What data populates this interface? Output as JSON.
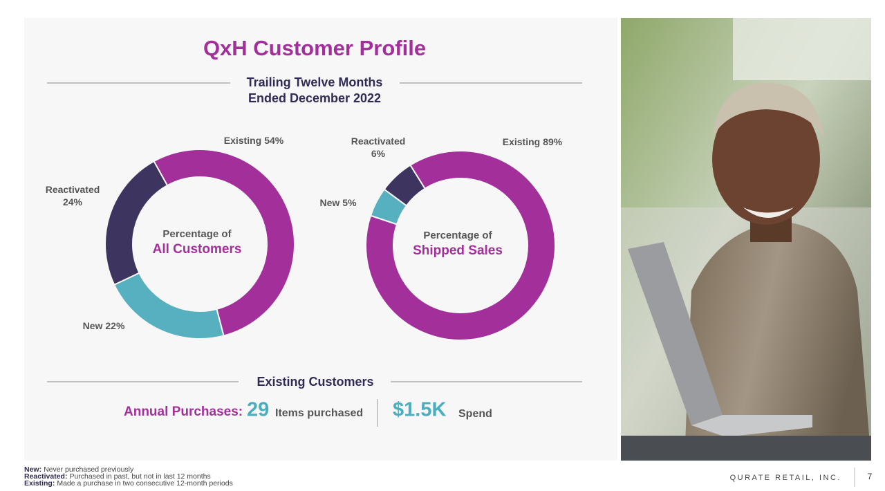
{
  "title": "QxH Customer Profile",
  "subtitle": [
    "Trailing Twelve Months",
    "Ended December 2022"
  ],
  "chart_data": [
    {
      "type": "pie",
      "donut": true,
      "center_label": [
        "Percentage of",
        "All Customers"
      ],
      "categories": [
        "Existing",
        "New",
        "Reactivated"
      ],
      "values": [
        54,
        22,
        24
      ],
      "value_labels": [
        "54%",
        "22%",
        "24%"
      ],
      "colors": [
        "#a3309a",
        "#56b0bf",
        "#3d3560"
      ]
    },
    {
      "type": "pie",
      "donut": true,
      "center_label": [
        "Percentage of",
        "Shipped Sales"
      ],
      "categories": [
        "Existing",
        "New",
        "Reactivated"
      ],
      "values": [
        89,
        5,
        6
      ],
      "value_labels": [
        "89%",
        "5%",
        "6%"
      ],
      "colors": [
        "#a3309a",
        "#56b0bf",
        "#3d3560"
      ]
    }
  ],
  "existing_customers": {
    "heading": "Existing Customers",
    "label": "Annual Purchases:",
    "items_value": "29",
    "items_text": "Items purchased",
    "spend_value": "$1.5K",
    "spend_text": "Spend"
  },
  "footnotes": [
    {
      "term": "New:",
      "text": "Never purchased previously"
    },
    {
      "term": "Reactivated:",
      "text": "Purchased in past, but not in last 12 months"
    },
    {
      "term": "Existing:",
      "text": "Made a purchase in two consecutive 12-month periods"
    }
  ],
  "footer": {
    "company": "QURATE RETAIL, INC.",
    "page": "7"
  }
}
